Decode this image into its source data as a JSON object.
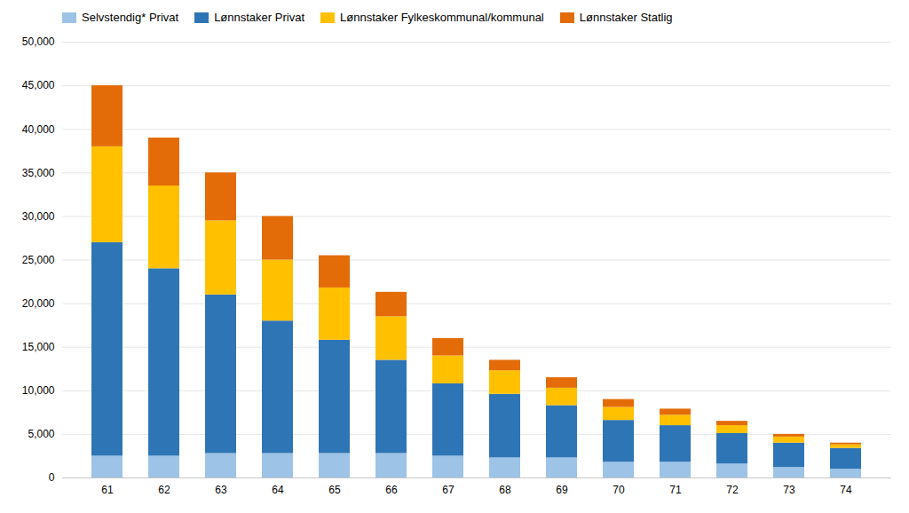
{
  "chart_data": {
    "type": "bar",
    "stacked": true,
    "categories": [
      61,
      62,
      63,
      64,
      65,
      66,
      67,
      68,
      69,
      70,
      71,
      72,
      73,
      74
    ],
    "series": [
      {
        "name": "Selvstendig* Privat",
        "color": "#9DC3E6",
        "values": [
          2500,
          2500,
          2800,
          2800,
          2800,
          2800,
          2500,
          2300,
          2300,
          1800,
          1800,
          1600,
          1200,
          1000
        ]
      },
      {
        "name": "Lønnstaker Privat",
        "color": "#2E75B6",
        "values": [
          24500,
          21500,
          18200,
          15200,
          13000,
          10700,
          8300,
          7300,
          6000,
          4800,
          4200,
          3500,
          2800,
          2400
        ]
      },
      {
        "name": "Lønnstaker Fylkeskommunal/kommunal",
        "color": "#FFC000",
        "values": [
          11000,
          9500,
          8500,
          7000,
          6000,
          5000,
          3200,
          2700,
          2000,
          1500,
          1200,
          900,
          700,
          400
        ]
      },
      {
        "name": "Lønnstaker Statlig",
        "color": "#E36C09",
        "values": [
          7000,
          5500,
          5500,
          5000,
          3700,
          2800,
          2000,
          1200,
          1200,
          900,
          700,
          500,
          300,
          200
        ]
      }
    ],
    "ylim": [
      0,
      50000
    ],
    "yticks": [
      0,
      {
        "value": 5000,
        "label": "5,000"
      },
      {
        "value": 10000,
        "label": "10,000"
      },
      {
        "value": 15000,
        "label": "15,000"
      },
      {
        "value": 20000,
        "label": "20,000"
      },
      {
        "value": 25000,
        "label": "25,000"
      },
      {
        "value": 30000,
        "label": "30,000"
      },
      {
        "value": 35000,
        "label": "35,000"
      },
      {
        "value": 40000,
        "label": "40,000"
      },
      {
        "value": 45000,
        "label": "45,000"
      },
      {
        "value": 50000,
        "label": "50,000"
      }
    ],
    "grid": true,
    "legend": "upper left"
  }
}
